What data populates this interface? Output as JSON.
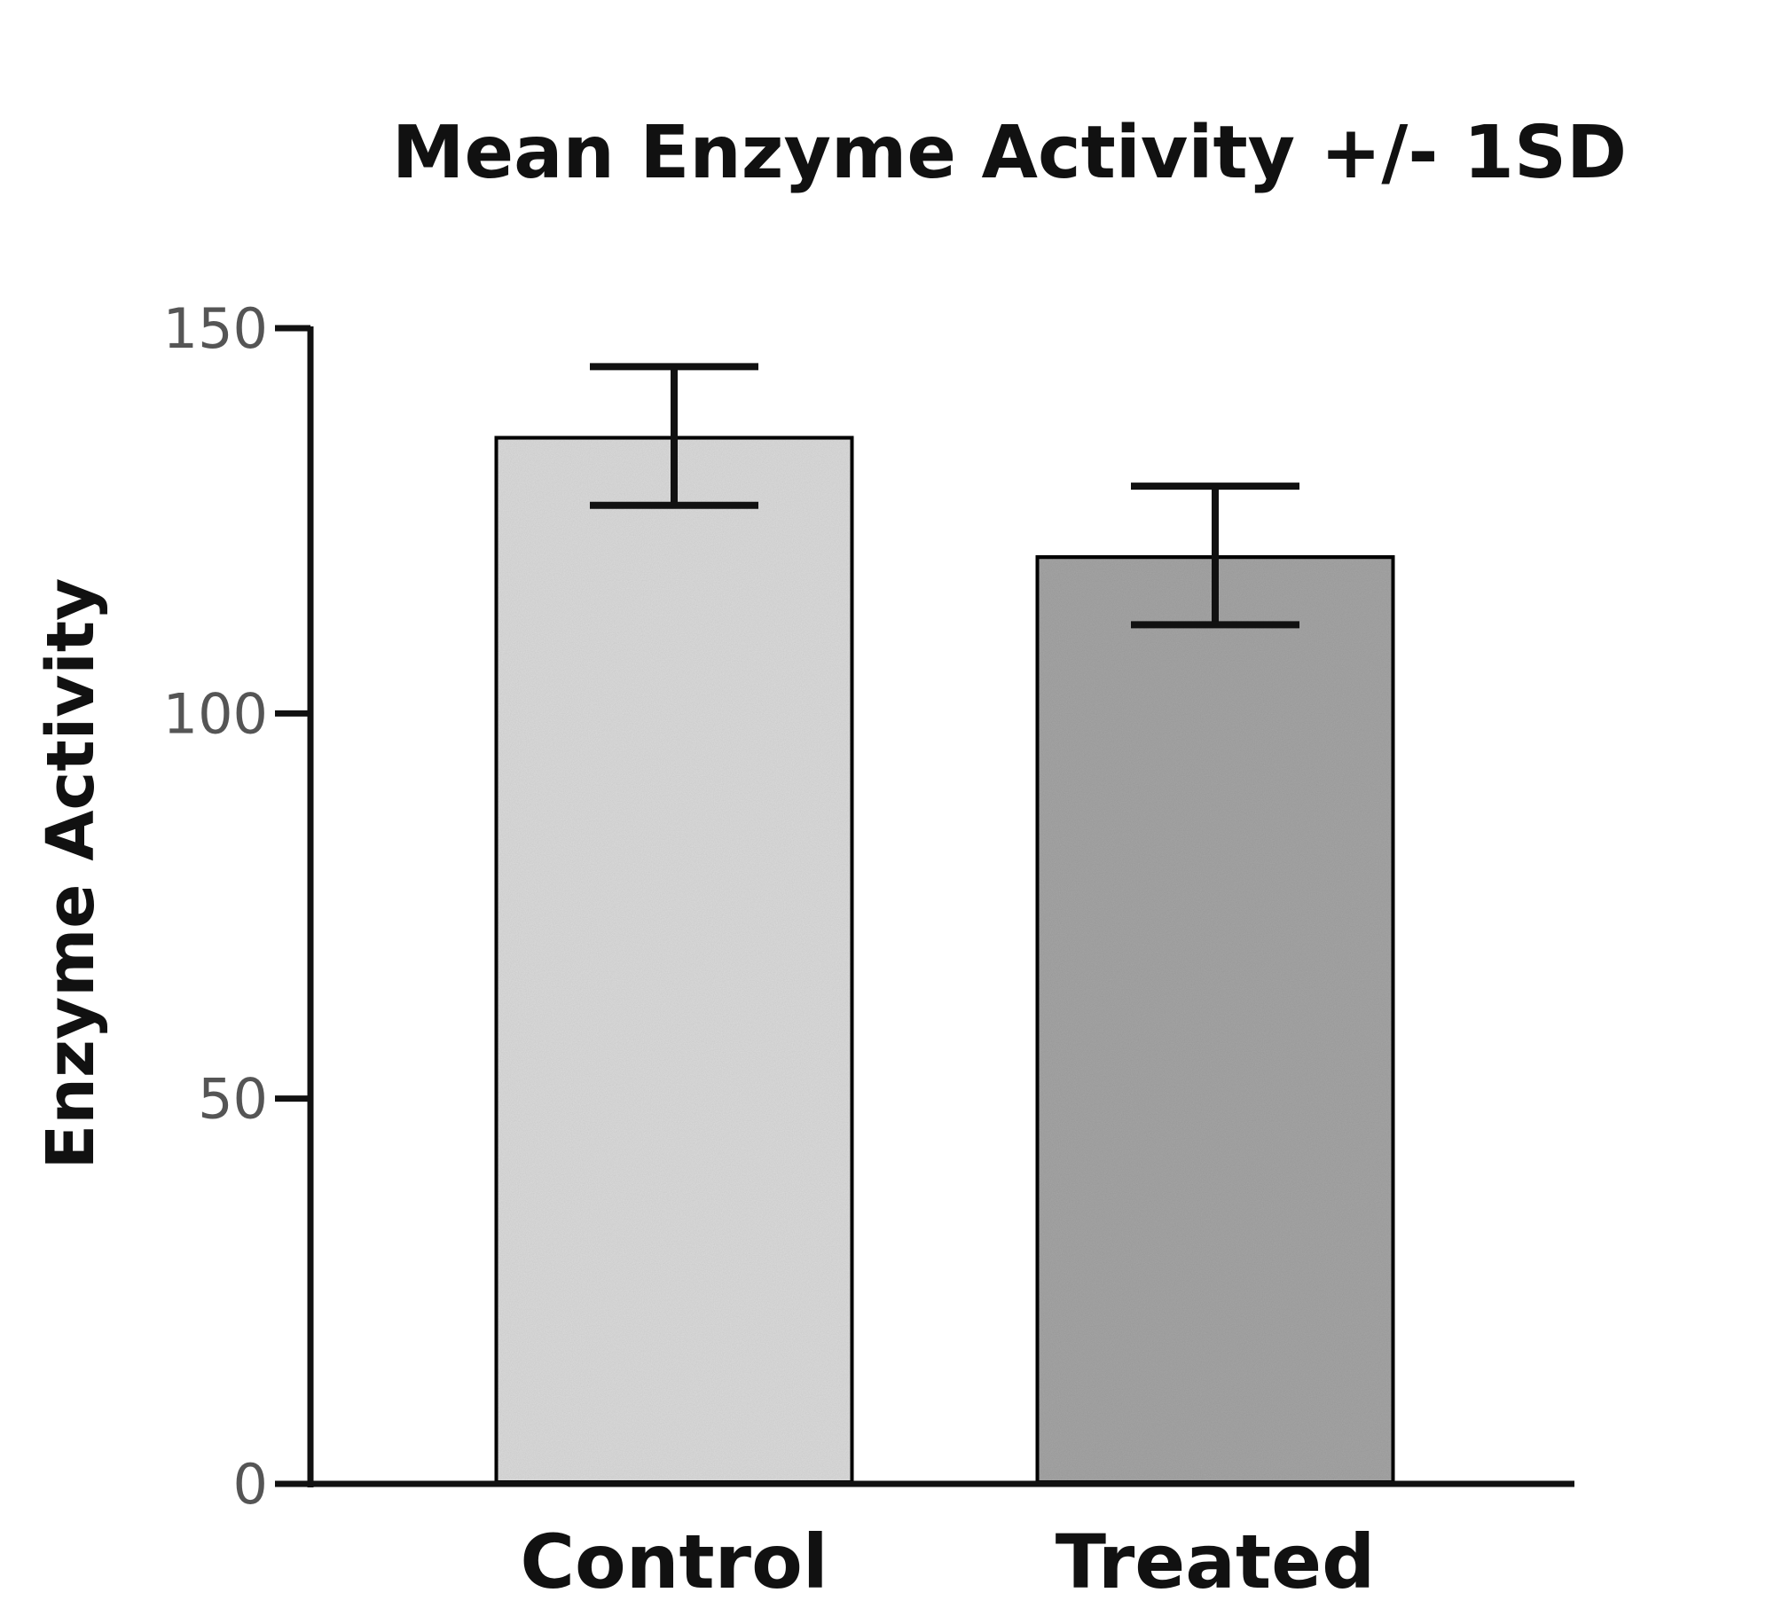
{
  "chart_data": {
    "type": "bar",
    "title": "Mean Enzyme Activity +/- 1SD",
    "xlabel": "",
    "ylabel": "Enzyme Activity",
    "categories": [
      "Control",
      "Treated"
    ],
    "values": [
      136,
      120.5
    ],
    "error": [
      9,
      9
    ],
    "ylim": [
      0,
      150
    ],
    "yticks": [
      "0",
      "50",
      "100",
      "150"
    ],
    "bar_colors": [
      "#dcdcdc",
      "#a6a6a6"
    ],
    "grid": false,
    "legend": "none"
  }
}
